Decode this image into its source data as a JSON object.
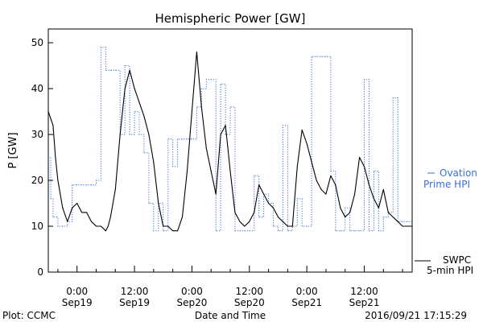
{
  "chart_data": {
    "type": "line",
    "title": "Hemispheric Power [GW]",
    "xlabel": "Date and Time",
    "ylabel": "P [GW]",
    "xlim": [
      -6,
      70
    ],
    "ylim": [
      0,
      53
    ],
    "yticks": [
      0,
      10,
      20,
      30,
      40,
      50
    ],
    "xticks": [
      {
        "h": 0,
        "line1": "0:00",
        "line2": "Sep19"
      },
      {
        "h": 12,
        "line1": "12:00",
        "line2": "Sep19"
      },
      {
        "h": 24,
        "line1": "0:00",
        "line2": "Sep20"
      },
      {
        "h": 36,
        "line1": "12:00",
        "line2": "Sep20"
      },
      {
        "h": 48,
        "line1": "0:00",
        "line2": "Sep21"
      },
      {
        "h": 60,
        "line1": "12:00",
        "line2": "Sep21"
      }
    ],
    "series": [
      {
        "name": "Ovation Prime HPI",
        "legend_line1": "Ovation",
        "legend_line2": "Prime HPI",
        "color": "#3a6fcf",
        "style": "dotted-step",
        "x": [
          -6,
          -5.5,
          -5,
          -4,
          -3,
          -2,
          -1,
          0,
          1,
          2,
          3,
          4,
          5,
          6,
          7,
          8,
          9,
          10,
          11,
          12,
          13,
          14,
          15,
          16,
          17,
          18,
          19,
          20,
          21,
          22,
          23,
          24,
          25,
          26,
          27,
          28,
          29,
          30,
          31,
          32,
          33,
          34,
          35,
          36,
          37,
          38,
          39,
          40,
          41,
          42,
          43,
          44,
          45,
          46,
          47,
          48,
          49,
          50,
          51,
          52,
          53,
          54,
          55,
          56,
          57,
          58,
          59,
          60,
          61,
          62,
          63,
          64,
          65,
          66,
          67,
          68,
          69,
          70
        ],
        "y": [
          25,
          16,
          12,
          10,
          10,
          11,
          19,
          19,
          19,
          19,
          19,
          20,
          49,
          44,
          44,
          44,
          30,
          45,
          30,
          35,
          30,
          26,
          15,
          9,
          15,
          9,
          29,
          23,
          29,
          29,
          29,
          29,
          36,
          40,
          42,
          42,
          9,
          41,
          30,
          36,
          9,
          9,
          9,
          9,
          21,
          12,
          17,
          15,
          10,
          9,
          32,
          9,
          10,
          16,
          10,
          10,
          47,
          47,
          47,
          47,
          22,
          9,
          9,
          14,
          9,
          9,
          9,
          42,
          9,
          22,
          9,
          12,
          13,
          38,
          11,
          11,
          11,
          11
        ]
      },
      {
        "name": "SWPC 5-min HPI",
        "legend_line1": "SWPC",
        "legend_line2": "5-min HPI",
        "color": "#000000",
        "style": "solid",
        "x": [
          -6,
          -5,
          -4.5,
          -4,
          -3,
          -2,
          -1,
          0,
          1,
          2,
          3,
          4,
          5,
          6,
          6.5,
          7,
          8,
          9,
          10,
          11,
          12,
          13,
          14,
          15,
          16,
          17,
          18,
          19,
          20,
          21,
          22,
          23,
          24,
          25,
          26,
          27,
          28,
          29,
          30,
          31,
          32,
          33,
          34,
          35,
          36,
          37,
          38,
          39,
          40,
          41,
          42,
          43,
          44,
          45,
          46,
          47,
          48,
          49,
          50,
          51,
          52,
          53,
          54,
          55,
          56,
          57,
          58,
          59,
          60,
          61,
          62,
          63,
          64,
          65,
          66,
          67,
          68,
          69,
          70
        ],
        "y": [
          35,
          32,
          25,
          20,
          14,
          11,
          14,
          15,
          13,
          13,
          11,
          10,
          10,
          9,
          10,
          12,
          18,
          30,
          40,
          44,
          40,
          37,
          34,
          30,
          24,
          15,
          10,
          10,
          9,
          9,
          12,
          22,
          35,
          48,
          36,
          27,
          22,
          17,
          30,
          32,
          22,
          13,
          11,
          10,
          11,
          13,
          19,
          17,
          15,
          14,
          12,
          11,
          10,
          10,
          23,
          31,
          28,
          24,
          20,
          18,
          17,
          21,
          19,
          14,
          12,
          13,
          17,
          25,
          23,
          19,
          16,
          14,
          18,
          13,
          12,
          11,
          10,
          10,
          10
        ]
      }
    ]
  },
  "footer": {
    "plot_source": "Plot: CCMC",
    "timestamp": "2016/09/21 17:15:29"
  }
}
